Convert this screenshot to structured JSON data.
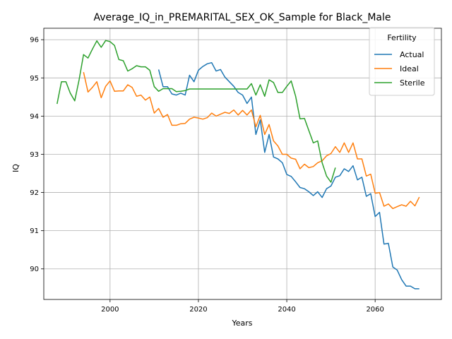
{
  "chart_data": {
    "type": "line",
    "title": "Average_IQ_in_PREMARITAL_SEX_OK_Sample for Black_Male",
    "xlabel": "Years",
    "ylabel": "IQ",
    "xlim": [
      1985,
      2075
    ],
    "ylim": [
      89.2,
      96.3
    ],
    "x_ticks": [
      2000,
      2020,
      2040,
      2060
    ],
    "y_ticks": [
      90,
      91,
      92,
      93,
      94,
      95,
      96
    ],
    "grid": true,
    "legend": {
      "title": "Fertility",
      "placement": "top-right"
    },
    "series": [
      {
        "name": "Actual",
        "color": "#1f77b4",
        "points": [
          [
            2011,
            95.22
          ],
          [
            2012,
            94.77
          ],
          [
            2013,
            94.77
          ],
          [
            2014,
            94.58
          ],
          [
            2015,
            94.55
          ],
          [
            2016,
            94.6
          ],
          [
            2017,
            94.55
          ],
          [
            2018,
            95.07
          ],
          [
            2019,
            94.9
          ],
          [
            2020,
            95.2
          ],
          [
            2021,
            95.3
          ],
          [
            2022,
            95.37
          ],
          [
            2023,
            95.4
          ],
          [
            2024,
            95.18
          ],
          [
            2025,
            95.22
          ],
          [
            2026,
            95.02
          ],
          [
            2027,
            94.9
          ],
          [
            2028,
            94.78
          ],
          [
            2029,
            94.62
          ],
          [
            2030,
            94.55
          ],
          [
            2031,
            94.33
          ],
          [
            2032,
            94.5
          ],
          [
            2033,
            93.52
          ],
          [
            2034,
            93.9
          ],
          [
            2035,
            93.05
          ],
          [
            2036,
            93.52
          ],
          [
            2037,
            92.93
          ],
          [
            2038,
            92.88
          ],
          [
            2039,
            92.78
          ],
          [
            2040,
            92.47
          ],
          [
            2041,
            92.42
          ],
          [
            2042,
            92.28
          ],
          [
            2043,
            92.13
          ],
          [
            2044,
            92.1
          ],
          [
            2045,
            92.02
          ],
          [
            2046,
            91.92
          ],
          [
            2047,
            92.02
          ],
          [
            2048,
            91.87
          ],
          [
            2049,
            92.1
          ],
          [
            2050,
            92.17
          ],
          [
            2051,
            92.4
          ],
          [
            2052,
            92.44
          ],
          [
            2053,
            92.62
          ],
          [
            2054,
            92.55
          ],
          [
            2055,
            92.7
          ],
          [
            2056,
            92.33
          ],
          [
            2057,
            92.4
          ],
          [
            2058,
            91.9
          ],
          [
            2059,
            91.97
          ],
          [
            2060,
            91.37
          ],
          [
            2061,
            91.48
          ],
          [
            2062,
            90.65
          ],
          [
            2063,
            90.67
          ],
          [
            2064,
            90.05
          ],
          [
            2065,
            89.97
          ],
          [
            2066,
            89.72
          ],
          [
            2067,
            89.55
          ],
          [
            2068,
            89.55
          ],
          [
            2069,
            89.48
          ],
          [
            2070,
            89.48
          ]
        ]
      },
      {
        "name": "Ideal",
        "color": "#ff7f0e",
        "points": [
          [
            1994,
            95.15
          ],
          [
            1995,
            94.63
          ],
          [
            1996,
            94.75
          ],
          [
            1997,
            94.9
          ],
          [
            1998,
            94.48
          ],
          [
            1999,
            94.78
          ],
          [
            2000,
            94.92
          ],
          [
            2001,
            94.65
          ],
          [
            2002,
            94.66
          ],
          [
            2003,
            94.66
          ],
          [
            2004,
            94.82
          ],
          [
            2005,
            94.75
          ],
          [
            2006,
            94.52
          ],
          [
            2007,
            94.55
          ],
          [
            2008,
            94.42
          ],
          [
            2009,
            94.5
          ],
          [
            2010,
            94.08
          ],
          [
            2011,
            94.2
          ],
          [
            2012,
            93.97
          ],
          [
            2013,
            94.04
          ],
          [
            2014,
            93.76
          ],
          [
            2015,
            93.76
          ],
          [
            2016,
            93.8
          ],
          [
            2017,
            93.81
          ],
          [
            2018,
            93.92
          ],
          [
            2019,
            93.97
          ],
          [
            2020,
            93.95
          ],
          [
            2021,
            93.92
          ],
          [
            2022,
            93.96
          ],
          [
            2023,
            94.08
          ],
          [
            2024,
            94.0
          ],
          [
            2025,
            94.05
          ],
          [
            2026,
            94.1
          ],
          [
            2027,
            94.07
          ],
          [
            2028,
            94.16
          ],
          [
            2029,
            94.03
          ],
          [
            2030,
            94.15
          ],
          [
            2031,
            94.03
          ],
          [
            2032,
            94.16
          ],
          [
            2033,
            93.72
          ],
          [
            2034,
            94.02
          ],
          [
            2035,
            93.52
          ],
          [
            2036,
            93.78
          ],
          [
            2037,
            93.35
          ],
          [
            2038,
            93.22
          ],
          [
            2039,
            93.0
          ],
          [
            2040,
            93.0
          ],
          [
            2041,
            92.9
          ],
          [
            2042,
            92.87
          ],
          [
            2043,
            92.62
          ],
          [
            2044,
            92.74
          ],
          [
            2045,
            92.65
          ],
          [
            2046,
            92.68
          ],
          [
            2047,
            92.78
          ],
          [
            2048,
            92.83
          ],
          [
            2049,
            92.96
          ],
          [
            2050,
            93.02
          ],
          [
            2051,
            93.2
          ],
          [
            2052,
            93.05
          ],
          [
            2053,
            93.3
          ],
          [
            2054,
            93.05
          ],
          [
            2055,
            93.3
          ],
          [
            2056,
            92.88
          ],
          [
            2057,
            92.88
          ],
          [
            2058,
            92.43
          ],
          [
            2059,
            92.48
          ],
          [
            2060,
            91.98
          ],
          [
            2061,
            92.0
          ],
          [
            2062,
            91.64
          ],
          [
            2063,
            91.7
          ],
          [
            2064,
            91.58
          ],
          [
            2065,
            91.63
          ],
          [
            2066,
            91.68
          ],
          [
            2067,
            91.64
          ],
          [
            2068,
            91.77
          ],
          [
            2069,
            91.65
          ],
          [
            2070,
            91.88
          ]
        ]
      },
      {
        "name": "Sterile",
        "color": "#2ca02c",
        "points": [
          [
            1988,
            94.32
          ],
          [
            1989,
            94.9
          ],
          [
            1990,
            94.9
          ],
          [
            1991,
            94.6
          ],
          [
            1992,
            94.4
          ],
          [
            1993,
            94.95
          ],
          [
            1994,
            95.61
          ],
          [
            1995,
            95.52
          ],
          [
            1996,
            95.75
          ],
          [
            1997,
            95.97
          ],
          [
            1998,
            95.8
          ],
          [
            1999,
            95.98
          ],
          [
            2000,
            95.95
          ],
          [
            2001,
            95.85
          ],
          [
            2002,
            95.48
          ],
          [
            2003,
            95.45
          ],
          [
            2004,
            95.18
          ],
          [
            2005,
            95.24
          ],
          [
            2006,
            95.32
          ],
          [
            2007,
            95.29
          ],
          [
            2008,
            95.29
          ],
          [
            2009,
            95.2
          ],
          [
            2010,
            94.77
          ],
          [
            2011,
            94.65
          ],
          [
            2012,
            94.72
          ],
          [
            2013,
            94.72
          ],
          [
            2014,
            94.72
          ],
          [
            2015,
            94.64
          ],
          [
            2016,
            94.65
          ],
          [
            2017,
            94.67
          ],
          [
            2018,
            94.71
          ],
          [
            2019,
            94.71
          ],
          [
            2020,
            94.71
          ],
          [
            2021,
            94.71
          ],
          [
            2022,
            94.71
          ],
          [
            2023,
            94.71
          ],
          [
            2024,
            94.71
          ],
          [
            2025,
            94.71
          ],
          [
            2026,
            94.71
          ],
          [
            2027,
            94.71
          ],
          [
            2028,
            94.71
          ],
          [
            2029,
            94.71
          ],
          [
            2030,
            94.71
          ],
          [
            2031,
            94.71
          ],
          [
            2032,
            94.85
          ],
          [
            2033,
            94.55
          ],
          [
            2034,
            94.82
          ],
          [
            2035,
            94.52
          ],
          [
            2036,
            94.95
          ],
          [
            2037,
            94.88
          ],
          [
            2038,
            94.62
          ],
          [
            2039,
            94.62
          ],
          [
            2040,
            94.78
          ],
          [
            2041,
            94.92
          ],
          [
            2042,
            94.52
          ],
          [
            2043,
            93.93
          ],
          [
            2044,
            93.94
          ],
          [
            2045,
            93.62
          ],
          [
            2046,
            93.3
          ],
          [
            2047,
            93.35
          ],
          [
            2048,
            92.78
          ],
          [
            2049,
            92.43
          ],
          [
            2050,
            92.27
          ],
          [
            2051,
            92.65
          ]
        ]
      }
    ]
  }
}
